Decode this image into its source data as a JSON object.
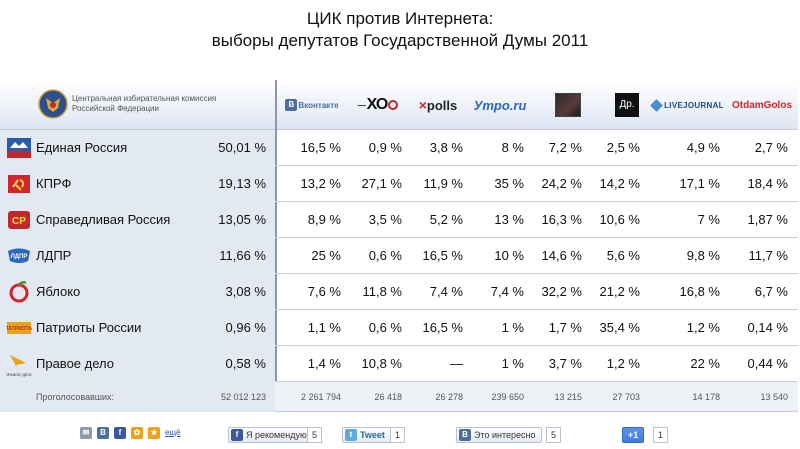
{
  "title": {
    "line1": "ЦИК против Интернета:",
    "line2": "выборы депутатов Государственной Думы 2011"
  },
  "cik": {
    "name_line1": "Центральная избирательная комиссия",
    "name_line2": "Российской Федерации"
  },
  "sources": [
    {
      "id": "vkontakte",
      "label": "Вконтакте"
    },
    {
      "id": "xo",
      "label": "ХО"
    },
    {
      "id": "xpolls",
      "label": "polls"
    },
    {
      "id": "utro",
      "label": "Утро.ru"
    },
    {
      "id": "dolboeb",
      "label": ""
    },
    {
      "id": "dr",
      "label": "Др."
    },
    {
      "id": "livejournal",
      "label": "LIVEJOURNAL"
    },
    {
      "id": "otdamgolos",
      "label": "OtdamGolos"
    }
  ],
  "parties": [
    {
      "name": "Единая Россия",
      "logo_text": "ЕДИНАЯ РОССИЯ",
      "cik": "50,01 %",
      "values": [
        "16,5 %",
        "0,9 %",
        "3,8 %",
        "8 %",
        "7,2 %",
        "2,5 %",
        "4,9 %",
        "2,7 %"
      ]
    },
    {
      "name": "КПРФ",
      "logo_text": "",
      "cik": "19,13 %",
      "values": [
        "13,2 %",
        "27,1 %",
        "11,9 %",
        "35 %",
        "24,2 %",
        "14,2 %",
        "17,1 %",
        "18,4 %"
      ]
    },
    {
      "name": "Справедливая Россия",
      "logo_text": "СР",
      "cik": "13,05 %",
      "values": [
        "8,9 %",
        "3,5 %",
        "5,2 %",
        "13 %",
        "16,3 %",
        "10,6 %",
        "7 %",
        "1,87 %"
      ]
    },
    {
      "name": "ЛДПР",
      "logo_text": "ЛДПР",
      "cik": "11,66 %",
      "values": [
        "25 %",
        "0,6 %",
        "16,5 %",
        "10 %",
        "14,6 %",
        "5,6 %",
        "9,8 %",
        "11,7 %"
      ]
    },
    {
      "name": "Яблоко",
      "logo_text": "",
      "cik": "3,08 %",
      "values": [
        "7,6 %",
        "11,8 %",
        "7,4 %",
        "7,4 %",
        "32,2 %",
        "21,2 %",
        "16,8 %",
        "6,7 %"
      ]
    },
    {
      "name": "Патриоты России",
      "logo_text": "ПАТРИОТЫ РОССИИ",
      "cik": "0,96 %",
      "values": [
        "1,1 %",
        "0,6 %",
        "16,5 %",
        "1 %",
        "1,7 %",
        "35,4 %",
        "1,2 %",
        "0,14 %"
      ]
    },
    {
      "name": "Правое дело",
      "logo_text": "ПРАВОЕ ДЕЛО",
      "cik": "0,58 %",
      "values": [
        "1,4 %",
        "10,8 %",
        "—",
        "1 %",
        "3,7 %",
        "1,2 %",
        "22 %",
        "0,44 %"
      ]
    }
  ],
  "totals": {
    "label": "Проголосовавших:",
    "cik": "52 012 123",
    "values": [
      "2 261 794",
      "26 418",
      "26 278",
      "239 650",
      "13 215",
      "27 703",
      "14 178",
      "13 540"
    ]
  },
  "share": {
    "icons": [
      "✉",
      "В",
      "f",
      "✿",
      "★"
    ],
    "more_label": "ещё",
    "fb_label": "Я рекомендую",
    "fb_count": "5",
    "tw_label": "Tweet",
    "tw_count": "1",
    "vk_label": "Это интересно",
    "vk_count": "5",
    "gplus_label": "+1",
    "gplus_count": "1"
  },
  "colors": {
    "row_left_bg": "#e3e9f3",
    "vk_blue": "#4a6e9d",
    "fb_blue": "#3b5998",
    "twitter": "#5ea9dd",
    "gplus": "#3f7be0"
  }
}
